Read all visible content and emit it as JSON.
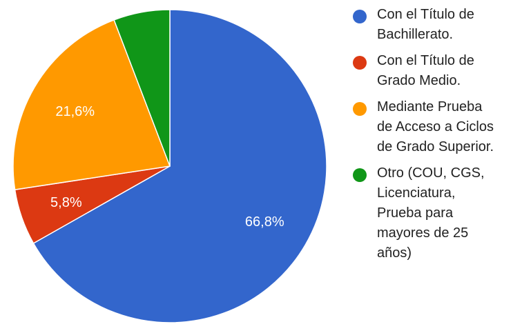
{
  "chart_data": {
    "type": "pie",
    "categories": [
      "Con el Título de Bachillerato.",
      "Con el Título de Grado Medio.",
      "Mediante Prueba de Acceso a Ciclos de Grado Superior.",
      "Otro (COU, CGS, Licenciatura, Prueba para mayores de 25 años)"
    ],
    "values": [
      66.8,
      5.8,
      21.6,
      5.8
    ],
    "labels": [
      "66,8%",
      "5,8%",
      "21,6%",
      ""
    ],
    "colors": [
      "#3366cc",
      "#dc3912",
      "#ff9900",
      "#109618"
    ],
    "legend": {
      "position": "right",
      "items": [
        {
          "lines": [
            "Con el Título de",
            "Bachillerato."
          ]
        },
        {
          "lines": [
            "Con el Título de",
            "Grado Medio."
          ]
        },
        {
          "lines": [
            "Mediante Prueba",
            "de Acceso a Ciclos",
            "de Grado Superior."
          ]
        },
        {
          "lines": [
            "Otro (COU, CGS,",
            "Licenciatura,",
            "Prueba para",
            "mayores de 25",
            "años)"
          ]
        }
      ]
    }
  }
}
